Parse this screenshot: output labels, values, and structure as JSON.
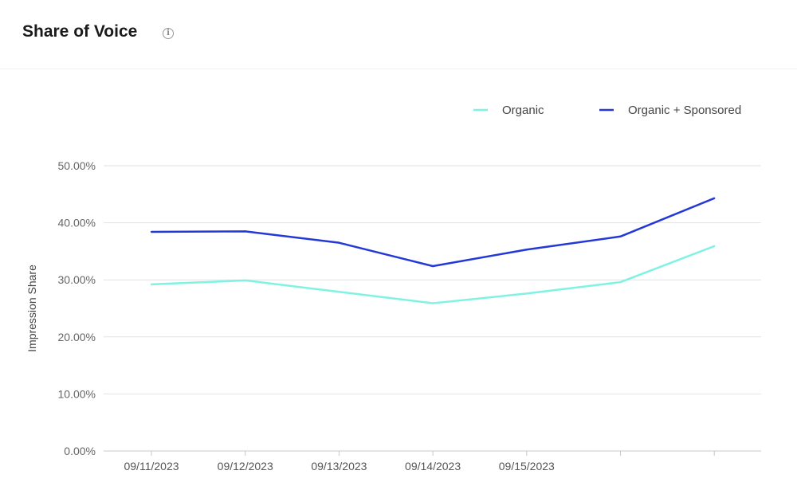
{
  "header": {
    "title": "Share of Voice",
    "info_icon": "info-icon"
  },
  "chart_data": {
    "type": "line",
    "title": "",
    "xlabel": "",
    "ylabel": "Impression Share",
    "ylim": [
      0,
      50
    ],
    "yticks": [
      "0.00%",
      "10.00%",
      "20.00%",
      "30.00%",
      "40.00%",
      "50.00%"
    ],
    "x": [
      "09/11/2023",
      "09/12/2023",
      "09/13/2023",
      "09/14/2023",
      "09/15/2023",
      "",
      ""
    ],
    "grid": true,
    "legend_position": "top-right",
    "series": [
      {
        "name": "Organic",
        "color": "#7ff2e3",
        "values": [
          29.2,
          29.9,
          27.9,
          25.9,
          27.6,
          29.6,
          35.9
        ]
      },
      {
        "name": "Organic + Sponsored",
        "color": "#2438d8",
        "values": [
          38.4,
          38.5,
          36.5,
          32.4,
          35.3,
          37.6,
          44.3
        ]
      }
    ]
  }
}
